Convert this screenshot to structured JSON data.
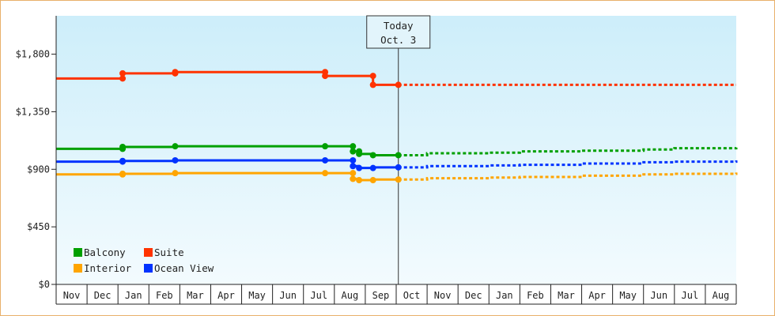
{
  "chart_data": {
    "type": "line",
    "title": "",
    "xlabel": "",
    "ylabel": "",
    "y_ticks": [
      "$0",
      "$450",
      "$900",
      "$1,350",
      "$1,800"
    ],
    "y_tick_values": [
      0,
      450,
      900,
      1350,
      1800
    ],
    "ylim": [
      0,
      2100
    ],
    "x_months": [
      "Nov",
      "Dec",
      "Jan",
      "Feb",
      "Mar",
      "Apr",
      "May",
      "Jun",
      "Jul",
      "Aug",
      "Sep",
      "Oct",
      "Nov",
      "Dec",
      "Jan",
      "Feb",
      "Mar",
      "Apr",
      "May",
      "Jun",
      "Jul",
      "Aug"
    ],
    "x_range_months": [
      0,
      22
    ],
    "today": {
      "line1": "Today",
      "line2": "Oct. 3",
      "x": 11.07
    },
    "grid": false,
    "legend_position": "bottom-left",
    "series": [
      {
        "name": "Suite",
        "color": "#ff3300",
        "history": [
          [
            0,
            1610
          ],
          [
            2.15,
            1610
          ],
          [
            2.15,
            1650
          ],
          [
            3.85,
            1650
          ],
          [
            3.85,
            1660
          ],
          [
            8.7,
            1660
          ],
          [
            8.7,
            1630
          ],
          [
            10.25,
            1630
          ],
          [
            10.25,
            1560
          ],
          [
            11.07,
            1560
          ]
        ],
        "markers": [
          [
            2.15,
            1610
          ],
          [
            2.15,
            1650
          ],
          [
            3.85,
            1650
          ],
          [
            3.85,
            1660
          ],
          [
            8.7,
            1660
          ],
          [
            8.7,
            1630
          ],
          [
            10.25,
            1630
          ],
          [
            10.25,
            1560
          ],
          [
            11.07,
            1560
          ]
        ],
        "forecast": [
          [
            11.07,
            1560
          ],
          [
            22,
            1560
          ]
        ]
      },
      {
        "name": "Balcony",
        "color": "#00a000",
        "history": [
          [
            0,
            1060
          ],
          [
            2.15,
            1060
          ],
          [
            2.15,
            1075
          ],
          [
            3.85,
            1075
          ],
          [
            3.85,
            1080
          ],
          [
            8.7,
            1080
          ],
          [
            9.6,
            1080
          ],
          [
            9.6,
            1040
          ],
          [
            9.8,
            1040
          ],
          [
            9.8,
            1020
          ],
          [
            10.25,
            1020
          ],
          [
            10.25,
            1010
          ],
          [
            11.07,
            1010
          ]
        ],
        "markers": [
          [
            2.15,
            1060
          ],
          [
            2.15,
            1075
          ],
          [
            3.85,
            1080
          ],
          [
            8.7,
            1080
          ],
          [
            9.6,
            1080
          ],
          [
            9.6,
            1040
          ],
          [
            9.8,
            1040
          ],
          [
            9.8,
            1020
          ],
          [
            10.25,
            1010
          ],
          [
            11.07,
            1010
          ]
        ],
        "forecast": [
          [
            11.07,
            1010
          ],
          [
            12,
            1025
          ],
          [
            14,
            1030
          ],
          [
            15,
            1040
          ],
          [
            17,
            1045
          ],
          [
            19,
            1055
          ],
          [
            20,
            1065
          ],
          [
            22,
            1070
          ]
        ]
      },
      {
        "name": "Ocean View",
        "color": "#0033ff",
        "history": [
          [
            0,
            960
          ],
          [
            2.15,
            960
          ],
          [
            2.15,
            965
          ],
          [
            3.85,
            965
          ],
          [
            3.85,
            970
          ],
          [
            8.7,
            970
          ],
          [
            9.6,
            970
          ],
          [
            9.6,
            925
          ],
          [
            9.8,
            925
          ],
          [
            9.8,
            910
          ],
          [
            10.25,
            910
          ],
          [
            10.25,
            915
          ],
          [
            11.07,
            915
          ]
        ],
        "markers": [
          [
            2.15,
            960
          ],
          [
            2.15,
            965
          ],
          [
            3.85,
            970
          ],
          [
            8.7,
            970
          ],
          [
            9.6,
            970
          ],
          [
            9.6,
            925
          ],
          [
            9.8,
            910
          ],
          [
            10.25,
            910
          ],
          [
            11.07,
            915
          ]
        ],
        "forecast": [
          [
            11.07,
            915
          ],
          [
            12,
            925
          ],
          [
            14,
            930
          ],
          [
            15,
            935
          ],
          [
            17,
            945
          ],
          [
            19,
            955
          ],
          [
            20,
            960
          ],
          [
            22,
            970
          ]
        ]
      },
      {
        "name": "Interior",
        "color": "#ffa500",
        "history": [
          [
            0,
            860
          ],
          [
            2.15,
            860
          ],
          [
            2.15,
            865
          ],
          [
            3.85,
            865
          ],
          [
            3.85,
            870
          ],
          [
            8.7,
            870
          ],
          [
            9.6,
            870
          ],
          [
            9.6,
            825
          ],
          [
            9.8,
            825
          ],
          [
            9.8,
            815
          ],
          [
            10.25,
            815
          ],
          [
            10.25,
            820
          ],
          [
            11.07,
            820
          ]
        ],
        "markers": [
          [
            2.15,
            860
          ],
          [
            2.15,
            865
          ],
          [
            3.85,
            870
          ],
          [
            8.7,
            870
          ],
          [
            9.6,
            870
          ],
          [
            9.6,
            825
          ],
          [
            9.8,
            815
          ],
          [
            10.25,
            815
          ],
          [
            11.07,
            820
          ]
        ],
        "forecast": [
          [
            11.07,
            820
          ],
          [
            12,
            830
          ],
          [
            14,
            835
          ],
          [
            15,
            840
          ],
          [
            17,
            850
          ],
          [
            19,
            860
          ],
          [
            20,
            865
          ],
          [
            22,
            875
          ]
        ]
      }
    ],
    "legend": [
      {
        "name": "Balcony",
        "color": "#00a000"
      },
      {
        "name": "Suite",
        "color": "#ff3300"
      },
      {
        "name": "Interior",
        "color": "#ffa500"
      },
      {
        "name": "Ocean View",
        "color": "#0033ff"
      }
    ]
  }
}
